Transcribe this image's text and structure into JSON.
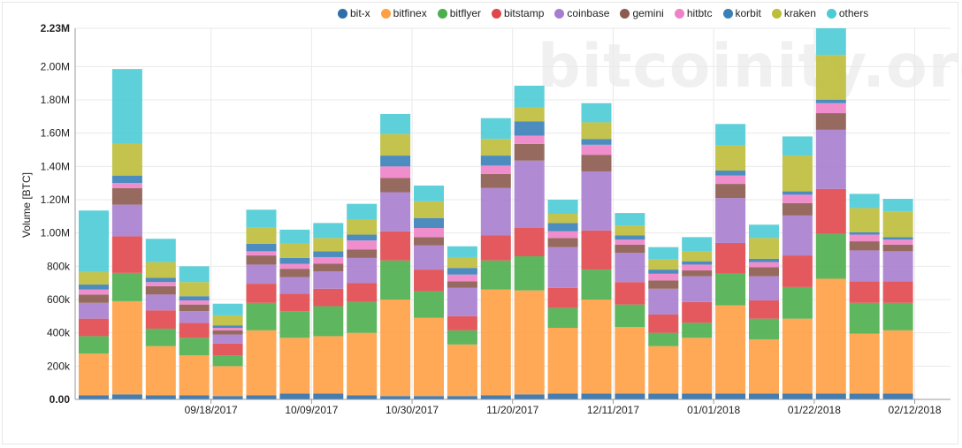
{
  "chart_data": {
    "type": "bar",
    "stacked": true,
    "ylabel": "Volume [BTC]",
    "ylim": [
      0,
      2230000
    ],
    "y_ticks": [
      0,
      200000,
      400000,
      600000,
      800000,
      1000000,
      1200000,
      1400000,
      1600000,
      1800000,
      2000000,
      2230000
    ],
    "y_tick_labels": [
      "0.00",
      "200k",
      "400k",
      "600k",
      "800k",
      "1.00M",
      "1.20M",
      "1.40M",
      "1.60M",
      "1.80M",
      "2.00M",
      "2.23M"
    ],
    "x_tick_labels": [
      "09/18/2017",
      "10/09/2017",
      "10/30/2017",
      "11/20/2017",
      "12/11/2017",
      "01/01/2018",
      "01/22/2018",
      "02/12/2018"
    ],
    "x_tick_positions": [
      4,
      7,
      10,
      13,
      16,
      19,
      22,
      25
    ],
    "legend_position": "top",
    "watermark": "bitcoinity.org",
    "series": [
      {
        "name": "bit-x",
        "color": "#2f6fa8",
        "values": [
          25000,
          30000,
          25000,
          25000,
          20000,
          25000,
          35000,
          35000,
          25000,
          20000,
          20000,
          20000,
          25000,
          30000,
          35000,
          35000,
          35000,
          35000,
          35000,
          35000,
          35000,
          35000,
          35000,
          35000,
          35000
        ]
      },
      {
        "name": "bitfinex",
        "color": "#ff9f43",
        "values": [
          250000,
          560000,
          295000,
          240000,
          180000,
          390000,
          335000,
          345000,
          375000,
          580000,
          470000,
          310000,
          635000,
          625000,
          395000,
          565000,
          400000,
          285000,
          335000,
          530000,
          325000,
          450000,
          690000,
          360000,
          380000
        ]
      },
      {
        "name": "bitflyer",
        "color": "#4cae4c",
        "values": [
          105000,
          170000,
          105000,
          105000,
          65000,
          165000,
          160000,
          180000,
          185000,
          235000,
          160000,
          85000,
          175000,
          205000,
          120000,
          180000,
          135000,
          80000,
          90000,
          190000,
          125000,
          190000,
          270000,
          185000,
          165000
        ]
      },
      {
        "name": "bitstamp",
        "color": "#e0474c",
        "values": [
          105000,
          220000,
          110000,
          90000,
          70000,
          115000,
          105000,
          105000,
          115000,
          175000,
          130000,
          85000,
          150000,
          170000,
          120000,
          235000,
          135000,
          110000,
          125000,
          185000,
          110000,
          190000,
          270000,
          130000,
          130000
        ]
      },
      {
        "name": "coinbase",
        "color": "#a87dcf",
        "values": [
          95000,
          190000,
          95000,
          70000,
          55000,
          115000,
          100000,
          105000,
          150000,
          235000,
          145000,
          170000,
          285000,
          405000,
          245000,
          355000,
          175000,
          155000,
          155000,
          270000,
          145000,
          240000,
          355000,
          185000,
          180000
        ]
      },
      {
        "name": "gemini",
        "color": "#8c5a4f",
        "values": [
          50000,
          100000,
          50000,
          40000,
          25000,
          55000,
          50000,
          45000,
          50000,
          85000,
          50000,
          40000,
          85000,
          100000,
          55000,
          100000,
          50000,
          50000,
          35000,
          85000,
          55000,
          75000,
          100000,
          55000,
          40000
        ]
      },
      {
        "name": "hitbtc",
        "color": "#ee82c8",
        "values": [
          30000,
          30000,
          25000,
          25000,
          15000,
          25000,
          30000,
          40000,
          55000,
          70000,
          55000,
          40000,
          50000,
          50000,
          40000,
          60000,
          30000,
          40000,
          35000,
          50000,
          30000,
          50000,
          60000,
          40000,
          30000
        ]
      },
      {
        "name": "korbit",
        "color": "#3a80b8",
        "values": [
          30000,
          45000,
          25000,
          25000,
          15000,
          45000,
          35000,
          35000,
          35000,
          65000,
          60000,
          40000,
          60000,
          85000,
          50000,
          35000,
          25000,
          25000,
          20000,
          30000,
          20000,
          20000,
          20000,
          15000,
          15000
        ]
      },
      {
        "name": "kraken",
        "color": "#bcbd3a",
        "values": [
          75000,
          190000,
          95000,
          85000,
          60000,
          100000,
          85000,
          80000,
          90000,
          130000,
          100000,
          65000,
          100000,
          85000,
          55000,
          100000,
          60000,
          60000,
          60000,
          150000,
          125000,
          215000,
          270000,
          145000,
          155000
        ]
      },
      {
        "name": "others",
        "color": "#4ccbd6",
        "values": [
          370000,
          450000,
          140000,
          95000,
          70000,
          105000,
          85000,
          90000,
          95000,
          120000,
          95000,
          65000,
          125000,
          130000,
          85000,
          115000,
          75000,
          75000,
          85000,
          130000,
          80000,
          115000,
          160000,
          85000,
          75000
        ]
      }
    ]
  }
}
